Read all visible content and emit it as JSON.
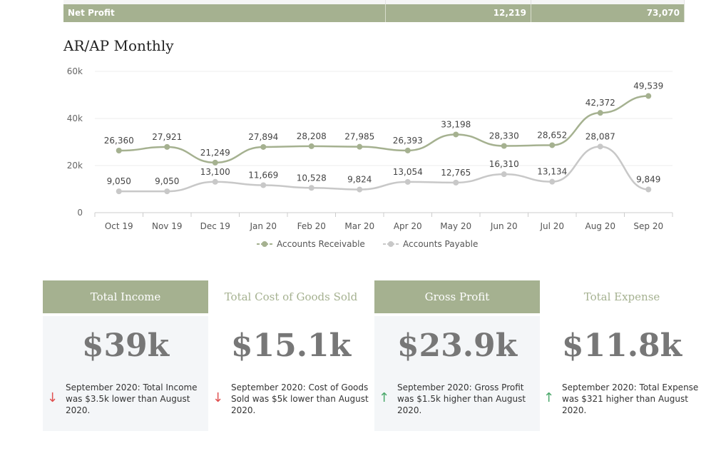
{
  "table": {
    "net_profit": {
      "label": "Net Profit",
      "v1": "12,219",
      "v2": "73,070"
    }
  },
  "chart_title": "AR/AP Monthly",
  "chart_data": {
    "type": "line",
    "categories": [
      "Oct 19",
      "Nov 19",
      "Dec 19",
      "Jan 20",
      "Feb 20",
      "Mar 20",
      "Apr 20",
      "May 20",
      "Jun 20",
      "Jul 20",
      "Aug 20",
      "Sep 20"
    ],
    "yticks": [
      "0",
      "20k",
      "40k",
      "60k"
    ],
    "ylim": [
      0,
      60000
    ],
    "grid": true,
    "legend": "bottom",
    "series": [
      {
        "name": "Accounts Receivable",
        "color": "#a5b190",
        "values": [
          26360,
          27921,
          21249,
          27894,
          28208,
          27985,
          26393,
          33198,
          28330,
          28652,
          42372,
          49539
        ]
      },
      {
        "name": "Accounts Payable",
        "color": "#c8c8c8",
        "values": [
          9050,
          9050,
          13100,
          11669,
          10528,
          9824,
          13054,
          12765,
          16310,
          13134,
          28087,
          9849
        ]
      }
    ]
  },
  "cards": [
    {
      "title": "Total Income",
      "value": "$39k",
      "note": "September 2020: Total Income was $3.5k lower than August 2020.",
      "dir": "down",
      "style": "g"
    },
    {
      "title": "Total Cost of Goods Sold",
      "value": "$15.1k",
      "note": "September 2020: Cost of Goods Sold was $5k lower than August 2020.",
      "dir": "down",
      "style": "w"
    },
    {
      "title": "Gross Profit",
      "value": "$23.9k",
      "note": "September 2020: Gross Profit was $1.5k higher than August 2020.",
      "dir": "up",
      "style": "g"
    },
    {
      "title": "Total Expense",
      "value": "$11.8k",
      "note": "September 2020: Total Expense was $321 higher than August 2020.",
      "dir": "up",
      "style": "w"
    }
  ]
}
